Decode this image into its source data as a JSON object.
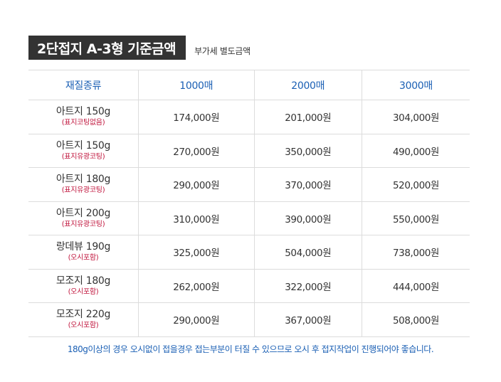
{
  "header": {
    "title": "2단접지 A-3형 기준금액",
    "subtitle": "부가세 별도금액"
  },
  "table": {
    "columns": [
      "재질종류",
      "1000매",
      "2000매",
      "3000매"
    ],
    "rows": [
      {
        "material": "아트지 150g",
        "note": "(표지코팅없음)",
        "prices": [
          "174,000원",
          "201,000원",
          "304,000원"
        ]
      },
      {
        "material": "아트지 150g",
        "note": "(표지유광코팅)",
        "prices": [
          "270,000원",
          "350,000원",
          "490,000원"
        ]
      },
      {
        "material": "아트지 180g",
        "note": "(표지유광코팅)",
        "prices": [
          "290,000원",
          "370,000원",
          "520,000원"
        ]
      },
      {
        "material": "아트지 200g",
        "note": "(표지유광코팅)",
        "prices": [
          "310,000원",
          "390,000원",
          "550,000원"
        ]
      },
      {
        "material": "랑데뷰 190g",
        "note": "(오시포함)",
        "prices": [
          "325,000원",
          "504,000원",
          "738,000원"
        ]
      },
      {
        "material": "모조지 180g",
        "note": "(오시포함)",
        "prices": [
          "262,000원",
          "322,000원",
          "444,000원"
        ]
      },
      {
        "material": "모조지 220g",
        "note": "(오시포함)",
        "prices": [
          "290,000원",
          "367,000원",
          "508,000원"
        ]
      }
    ]
  },
  "footnote": "180g이상의 경우 오시없이 접을경우 접는부분이 터질 수 있으므로 오시 후 접지작업이 진행되어야 좋습니다.",
  "colors": {
    "title_bg": "#333333",
    "header_text": "#1a5fb4",
    "note_text": "#c0143c",
    "grid": "#dcdcdc"
  }
}
